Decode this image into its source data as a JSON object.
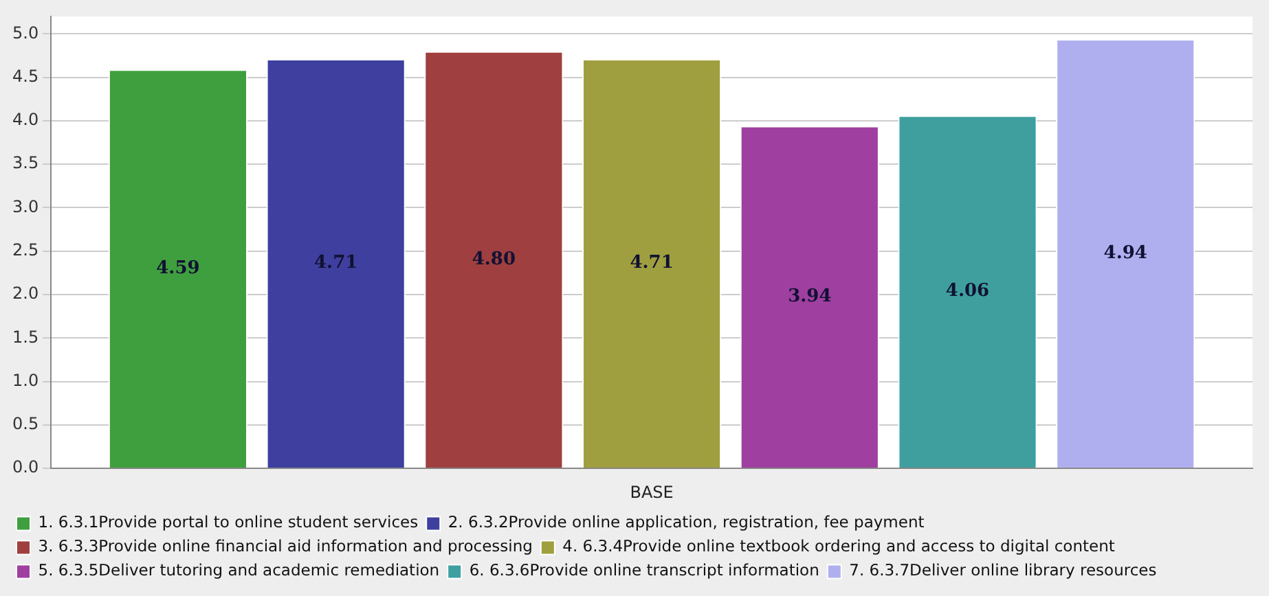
{
  "chart_data": {
    "type": "bar",
    "categories": [
      "BASE"
    ],
    "series": [
      {
        "name": "1. 6.3.1Provide portal to online student services",
        "color": "#3f9f3f",
        "values": [
          4.59
        ],
        "value_labels": [
          "4.59"
        ]
      },
      {
        "name": "2. 6.3.2Provide online application, registration, fee payment",
        "color": "#3f3f9f",
        "values": [
          4.71
        ],
        "value_labels": [
          "4.71"
        ]
      },
      {
        "name": "3. 6.3.3Provide online financial aid information and processing",
        "color": "#9f3f3f",
        "values": [
          4.8
        ],
        "value_labels": [
          "4.80"
        ]
      },
      {
        "name": "4. 6.3.4Provide online textbook ordering and access to digital content",
        "color": "#9f9f3f",
        "values": [
          4.71
        ],
        "value_labels": [
          "4.71"
        ]
      },
      {
        "name": "5. 6.3.5Deliver tutoring and academic remediation",
        "color": "#9f3f9f",
        "values": [
          3.94
        ],
        "value_labels": [
          "3.94"
        ]
      },
      {
        "name": "6. 6.3.6Provide online transcript information",
        "color": "#3f9f9f",
        "values": [
          4.06
        ],
        "value_labels": [
          "4.06"
        ]
      },
      {
        "name": "7. 6.3.7Deliver online library resources",
        "color": "#afafef",
        "values": [
          4.94
        ],
        "value_labels": [
          "4.94"
        ]
      }
    ],
    "ylim": [
      0,
      5.2
    ],
    "yticks": [
      {
        "value": 0,
        "label": "0.0"
      },
      {
        "value": 0.5,
        "label": "0.5"
      },
      {
        "value": 1,
        "label": "1.0"
      },
      {
        "value": 1.5,
        "label": "1.5"
      },
      {
        "value": 2,
        "label": "2.0"
      },
      {
        "value": 2.5,
        "label": "2.5"
      },
      {
        "value": 3,
        "label": "3.0"
      },
      {
        "value": 3.5,
        "label": "3.5"
      },
      {
        "value": 4,
        "label": "4.0"
      },
      {
        "value": 4.5,
        "label": "4.5"
      },
      {
        "value": 5,
        "label": "5.0"
      }
    ],
    "grid": "y",
    "legend": "bottom"
  }
}
